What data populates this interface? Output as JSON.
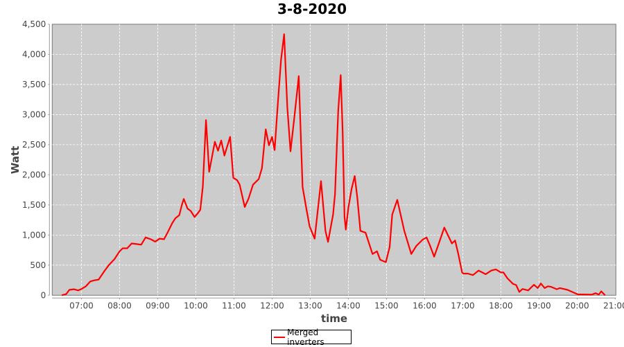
{
  "chart_data": {
    "type": "line",
    "title": "3-8-2020",
    "xlabel": "time",
    "ylabel": "Watt",
    "xlim": [
      "06:14",
      "21:01"
    ],
    "ylim": [
      0,
      4500
    ],
    "x_ticks": [
      "07:00",
      "08:00",
      "09:00",
      "10:00",
      "11:00",
      "12:00",
      "13:00",
      "14:00",
      "15:00",
      "16:00",
      "17:00",
      "18:00",
      "19:00",
      "20:00",
      "21:00"
    ],
    "y_ticks": [
      "0",
      "500",
      "1,000",
      "1,500",
      "2,000",
      "2,500",
      "3,000",
      "3,500",
      "4,000",
      "4,500"
    ],
    "grid": true,
    "legend_position": "bottom",
    "colors": {
      "plot_background": "#cccccc",
      "grid": "#ffffff",
      "series": "#ff0000"
    },
    "series": [
      {
        "name": "Merged inverters",
        "points": [
          [
            "06:29",
            0
          ],
          [
            "06:36",
            20
          ],
          [
            "06:41",
            90
          ],
          [
            "06:48",
            100
          ],
          [
            "06:55",
            80
          ],
          [
            "07:01",
            110
          ],
          [
            "07:07",
            150
          ],
          [
            "07:14",
            230
          ],
          [
            "07:21",
            250
          ],
          [
            "07:27",
            260
          ],
          [
            "07:36",
            400
          ],
          [
            "07:43",
            500
          ],
          [
            "07:52",
            600
          ],
          [
            "08:00",
            730
          ],
          [
            "08:05",
            780
          ],
          [
            "08:12",
            780
          ],
          [
            "08:19",
            860
          ],
          [
            "08:27",
            850
          ],
          [
            "08:34",
            840
          ],
          [
            "08:41",
            960
          ],
          [
            "08:49",
            930
          ],
          [
            "08:56",
            890
          ],
          [
            "09:03",
            940
          ],
          [
            "09:10",
            930
          ],
          [
            "09:16",
            1050
          ],
          [
            "09:23",
            1200
          ],
          [
            "09:28",
            1280
          ],
          [
            "09:34",
            1330
          ],
          [
            "09:38",
            1500
          ],
          [
            "09:41",
            1600
          ],
          [
            "09:47",
            1440
          ],
          [
            "09:52",
            1400
          ],
          [
            "09:58",
            1300
          ],
          [
            "10:03",
            1360
          ],
          [
            "10:07",
            1420
          ],
          [
            "10:11",
            1800
          ],
          [
            "10:16",
            2910
          ],
          [
            "10:21",
            2050
          ],
          [
            "10:30",
            2550
          ],
          [
            "10:35",
            2400
          ],
          [
            "10:40",
            2570
          ],
          [
            "10:45",
            2320
          ],
          [
            "10:54",
            2630
          ],
          [
            "10:59",
            1950
          ],
          [
            "11:05",
            1910
          ],
          [
            "11:09",
            1835
          ],
          [
            "11:17",
            1465
          ],
          [
            "11:23",
            1605
          ],
          [
            "11:30",
            1835
          ],
          [
            "11:39",
            1930
          ],
          [
            "11:44",
            2110
          ],
          [
            "11:50",
            2755
          ],
          [
            "11:55",
            2490
          ],
          [
            "12:00",
            2630
          ],
          [
            "12:04",
            2410
          ],
          [
            "12:09",
            3180
          ],
          [
            "12:14",
            3905
          ],
          [
            "12:19",
            4335
          ],
          [
            "12:24",
            3120
          ],
          [
            "12:29",
            2390
          ],
          [
            "12:35",
            2950
          ],
          [
            "12:42",
            3640
          ],
          [
            "12:48",
            1800
          ],
          [
            "12:54",
            1435
          ],
          [
            "12:59",
            1145
          ],
          [
            "13:07",
            940
          ],
          [
            "13:17",
            1895
          ],
          [
            "13:24",
            1070
          ],
          [
            "13:28",
            885
          ],
          [
            "13:36",
            1340
          ],
          [
            "13:39",
            1680
          ],
          [
            "13:44",
            3060
          ],
          [
            "13:48",
            3655
          ],
          [
            "13:51",
            2720
          ],
          [
            "13:54",
            1300
          ],
          [
            "13:56",
            1090
          ],
          [
            "14:00",
            1450
          ],
          [
            "14:05",
            1760
          ],
          [
            "14:10",
            1980
          ],
          [
            "14:14",
            1625
          ],
          [
            "14:19",
            1070
          ],
          [
            "14:27",
            1040
          ],
          [
            "14:38",
            685
          ],
          [
            "14:45",
            730
          ],
          [
            "14:50",
            590
          ],
          [
            "14:59",
            550
          ],
          [
            "15:05",
            800
          ],
          [
            "15:09",
            1340
          ],
          [
            "15:17",
            1585
          ],
          [
            "15:28",
            1070
          ],
          [
            "15:39",
            685
          ],
          [
            "15:47",
            820
          ],
          [
            "15:57",
            925
          ],
          [
            "16:03",
            960
          ],
          [
            "16:08",
            840
          ],
          [
            "16:15",
            640
          ],
          [
            "16:23",
            880
          ],
          [
            "16:31",
            1125
          ],
          [
            "16:43",
            860
          ],
          [
            "16:48",
            910
          ],
          [
            "16:53",
            685
          ],
          [
            "16:59",
            380
          ],
          [
            "17:01",
            360
          ],
          [
            "17:08",
            360
          ],
          [
            "17:16",
            335
          ],
          [
            "17:25",
            410
          ],
          [
            "17:36",
            350
          ],
          [
            "17:45",
            410
          ],
          [
            "17:52",
            430
          ],
          [
            "18:00",
            380
          ],
          [
            "18:04",
            380
          ],
          [
            "18:10",
            285
          ],
          [
            "18:19",
            190
          ],
          [
            "18:24",
            170
          ],
          [
            "18:29",
            55
          ],
          [
            "18:34",
            105
          ],
          [
            "18:43",
            80
          ],
          [
            "18:52",
            175
          ],
          [
            "18:58",
            120
          ],
          [
            "19:03",
            195
          ],
          [
            "19:09",
            120
          ],
          [
            "19:14",
            150
          ],
          [
            "19:19",
            140
          ],
          [
            "19:28",
            100
          ],
          [
            "19:33",
            120
          ],
          [
            "19:45",
            90
          ],
          [
            "20:01",
            15
          ],
          [
            "20:23",
            10
          ],
          [
            "20:29",
            35
          ],
          [
            "20:34",
            10
          ],
          [
            "20:38",
            65
          ],
          [
            "20:44",
            0
          ]
        ]
      }
    ]
  }
}
